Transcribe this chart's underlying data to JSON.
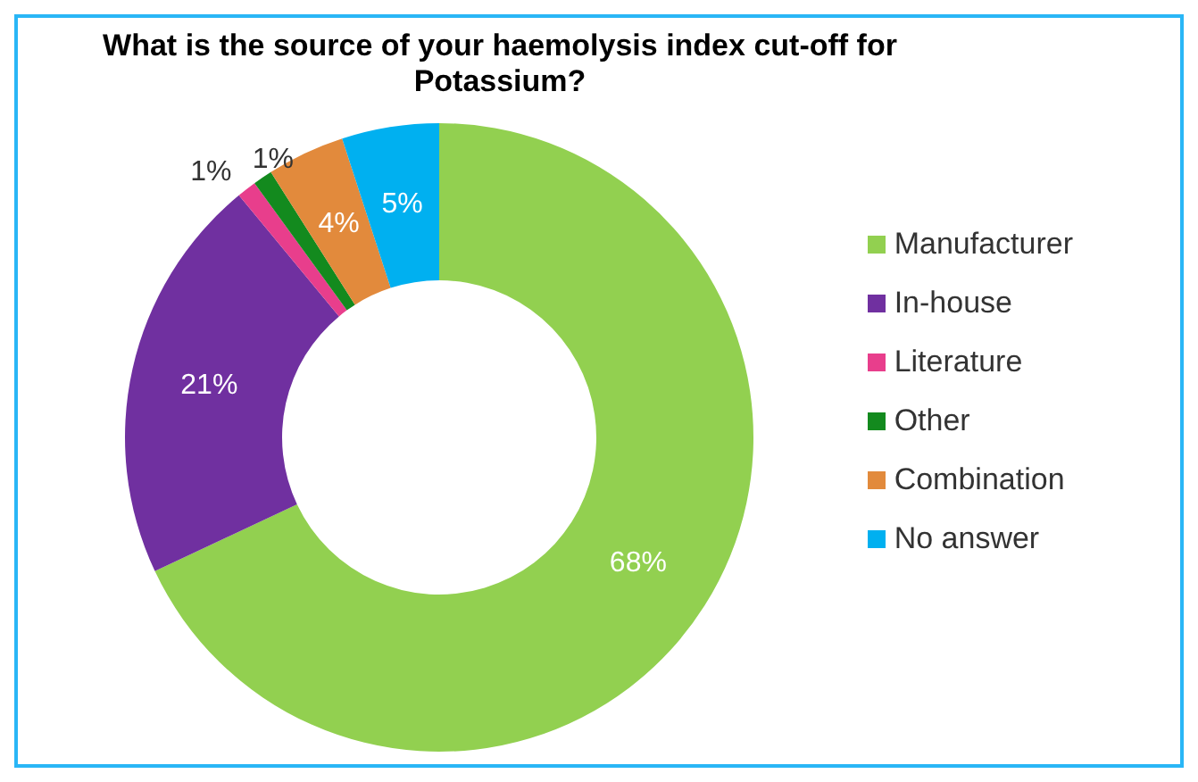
{
  "chart_data": {
    "type": "donut",
    "title": "What is the source of your haemolysis index cut-off for Potassium?",
    "categories": [
      "Manufacturer",
      "In-house",
      "Literature",
      "Other",
      "Combination",
      "No answer"
    ],
    "values": [
      68,
      21,
      1,
      1,
      4,
      5
    ],
    "colors": [
      "#92d050",
      "#7030a0",
      "#e83e8c",
      "#138a1e",
      "#e28a3c",
      "#00b0f0"
    ],
    "value_labels": [
      "68%",
      "21%",
      "1%",
      "1%",
      "4%",
      "5%"
    ],
    "legend": "right"
  }
}
